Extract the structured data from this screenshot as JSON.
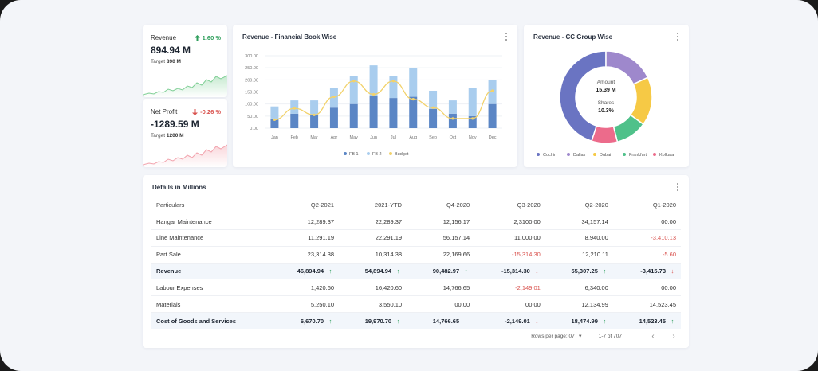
{
  "kpis": [
    {
      "label": "Revenue",
      "change": "1.60 %",
      "direction": "up",
      "value": "894.94 M",
      "target_label": "Target",
      "target_value": "890 M",
      "spark_color": "#7fcf95"
    },
    {
      "label": "Net Profit",
      "change": "-0.26 %",
      "direction": "down",
      "value": "-1289.59 M",
      "target_label": "Target",
      "target_value": "1200 M",
      "spark_color": "#f2a3ad"
    }
  ],
  "bar_card": {
    "title": "Revenue - Financial Book Wise"
  },
  "pie_card": {
    "title": "Revenue - CC Group Wise",
    "center_label1": "Amount",
    "center_value1": "15.39 M",
    "center_label2": "Shares",
    "center_value2": "10.3%"
  },
  "table_card": {
    "title": "Details in Millions",
    "columns": [
      "Particulars",
      "Q2-2021",
      "2021-YTD",
      "Q4-2020",
      "Q3-2020",
      "Q2-2020",
      "Q1-2020"
    ],
    "rows": [
      {
        "bold": false,
        "cells": [
          "Hangar Maintenance",
          "12,289.37",
          "22,289.37",
          "12,156.17",
          "2,3100.00",
          "34,157.14",
          "00.00"
        ],
        "arrows": [
          "",
          "",
          "",
          "",
          "",
          ""
        ]
      },
      {
        "bold": false,
        "cells": [
          "Line Maintenance",
          "11,291.19",
          "22,291.19",
          "56,157.14",
          "11,000.00",
          "8,940.00",
          "-3,410.13"
        ],
        "arrows": [
          "",
          "",
          "",
          "",
          "",
          ""
        ]
      },
      {
        "bold": false,
        "cells": [
          "Part Sale",
          "23,314.38",
          "10,314.38",
          "22,169.66",
          "-15,314.30",
          "12,210.11",
          "-5.60"
        ],
        "arrows": [
          "",
          "",
          "",
          "",
          "",
          ""
        ]
      },
      {
        "bold": true,
        "cells": [
          "Revenue",
          "46,894.94",
          "54,894.94",
          "90,482.97",
          "-15,314.30",
          "55,307.25",
          "-3,415.73"
        ],
        "arrows": [
          "up",
          "up",
          "up",
          "down",
          "up",
          "down"
        ]
      },
      {
        "bold": false,
        "cells": [
          "Labour Expenses",
          "1,420.60",
          "16,420.60",
          "14,766.65",
          "-2,149.01",
          "6,340.00",
          "00.00"
        ],
        "arrows": [
          "",
          "",
          "",
          "",
          "",
          ""
        ]
      },
      {
        "bold": false,
        "cells": [
          "Materials",
          "5,250.10",
          "3,550.10",
          "00.00",
          "00.00",
          "12,134.99",
          "14,523.45"
        ],
        "arrows": [
          "",
          "",
          "",
          "",
          "",
          ""
        ]
      },
      {
        "bold": true,
        "cells": [
          "Cost of Goods and Services",
          "6,670.70",
          "19,970.70",
          "14,766.65",
          "-2,149.01",
          "18,474.99",
          "14,523.45"
        ],
        "arrows": [
          "up",
          "up",
          "",
          "down",
          "up",
          "up"
        ]
      }
    ],
    "footer": {
      "rows_per_page_label": "Rows per page: 07",
      "range": "1-7 of 707"
    }
  },
  "chart_data": [
    {
      "type": "bar",
      "title": "Revenue - Financial Book Wise",
      "categories": [
        "Jan",
        "Feb",
        "Mar",
        "Apr",
        "May",
        "Jun",
        "Jul",
        "Aug",
        "Sep",
        "Oct",
        "Nov",
        "Dec"
      ],
      "stacked": true,
      "y_ticks": [
        "0.00",
        "50.00",
        "100.00",
        "150.00",
        "200.00",
        "250.00",
        "300.00"
      ],
      "ylim": [
        0,
        300
      ],
      "grid": true,
      "legend_position": "bottom",
      "series": [
        {
          "name": "FB 1",
          "type": "bar",
          "color": "#5b86c5",
          "values": [
            40,
            60,
            55,
            85,
            100,
            135,
            125,
            130,
            80,
            60,
            50,
            100
          ]
        },
        {
          "name": "FB 2",
          "type": "bar",
          "color": "#a9cdee",
          "values": [
            50,
            55,
            60,
            80,
            115,
            125,
            90,
            120,
            75,
            55,
            115,
            100
          ]
        },
        {
          "name": "Budget",
          "type": "line",
          "color": "#f2d26b",
          "values": [
            35,
            82,
            55,
            130,
            195,
            140,
            195,
            120,
            85,
            40,
            40,
            155
          ]
        }
      ]
    },
    {
      "type": "pie",
      "title": "Revenue - CC Group Wise",
      "donut": true,
      "legend_position": "bottom",
      "categories": [
        "Cochin",
        "Dallas",
        "Dubai",
        "Frankfurt",
        "Kolkata"
      ],
      "values": [
        45,
        18,
        17,
        11,
        9
      ],
      "colors": [
        "#6a74c2",
        "#9e88cc",
        "#f6c945",
        "#4fc18a",
        "#ec6b8b"
      ]
    }
  ]
}
